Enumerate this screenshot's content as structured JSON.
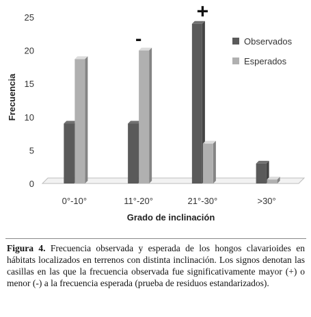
{
  "chart_data": {
    "type": "bar",
    "categories": [
      "0°-10°",
      "11°-20°",
      "21°-30°",
      ">30°"
    ],
    "series": [
      {
        "name": "Observados",
        "values": [
          9,
          9,
          24,
          3
        ],
        "color": "#5a5a5a"
      },
      {
        "name": "Esperados",
        "values": [
          18.7,
          20,
          6,
          0.6
        ],
        "color": "#b0b0b0"
      }
    ],
    "significance_signs": [
      "",
      "-",
      "+",
      ""
    ],
    "xlabel": "Grado de inclinación",
    "ylabel": "Frecuencia",
    "ylim": [
      0,
      25
    ],
    "yticks": [
      0,
      5,
      10,
      15,
      20,
      25
    ],
    "grid": false,
    "legend_position": "right",
    "style": "3d-bars"
  },
  "caption": {
    "label": "Figura 4.",
    "text": "Frecuencia observada y esperada de los hongos clavarioides en hábitats localizados en terrenos con distinta inclinación. Los signos denotan las casillas en las que la frecuencia observada fue significativamente mayor (+) o menor (-) a la frecuencia esperada (prueba de residuos estandarizados)."
  }
}
